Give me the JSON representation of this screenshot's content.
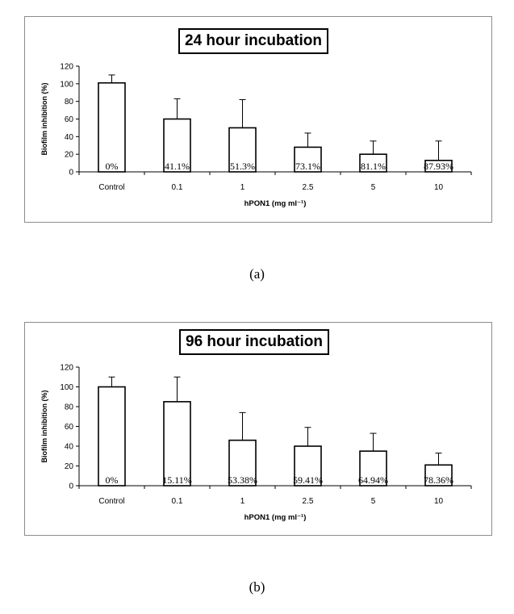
{
  "chart_data": [
    {
      "type": "bar",
      "title": "24 hour incubation",
      "categories": [
        "Control",
        "0.1",
        "1",
        "2.5",
        "5",
        "10"
      ],
      "values": [
        101,
        60,
        50,
        28,
        20,
        13
      ],
      "error_upper": [
        110,
        83,
        82,
        44,
        35,
        35
      ],
      "labels": [
        "0%",
        "41.1%",
        "51.3%",
        "73.1%",
        "81.1%",
        "87.93%"
      ],
      "xlabel": "hPON1 (mg ml⁻¹)",
      "ylabel": "Biofilm inhibition (%)",
      "ylim": [
        0,
        120
      ],
      "yticks": [
        0,
        20,
        40,
        60,
        80,
        100,
        120
      ],
      "caption": "(a)"
    },
    {
      "type": "bar",
      "title": "96 hour incubation",
      "categories": [
        "Control",
        "0.1",
        "1",
        "2.5",
        "5",
        "10"
      ],
      "values": [
        100,
        85,
        46,
        40,
        35,
        21
      ],
      "error_upper": [
        110,
        110,
        74,
        59,
        53,
        33
      ],
      "labels": [
        "0%",
        "15.11%",
        "53.38%",
        "59.41%",
        "64.94%",
        "78.36%"
      ],
      "xlabel": "hPON1 (mg ml⁻¹)",
      "ylabel": "Biofilm inhibition (%)",
      "ylim": [
        0,
        120
      ],
      "yticks": [
        0,
        20,
        40,
        60,
        80,
        100,
        120
      ],
      "caption": "(b)"
    }
  ]
}
